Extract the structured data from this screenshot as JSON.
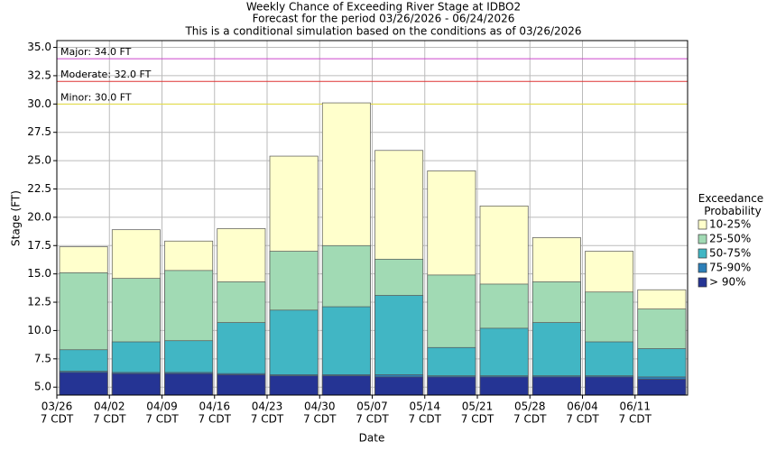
{
  "chart_data": {
    "type": "bar",
    "title": "Weekly Chance of Exceeding River Stage at IDBO2",
    "subtitle": "Forecast for the period 03/26/2026 - 06/24/2026",
    "note": "This is a conditional simulation based on the conditions as of 03/26/2026",
    "x_label": "Date",
    "y_label": "Stage (FT)",
    "categories": [
      "03/26",
      "04/02",
      "04/09",
      "04/16",
      "04/23",
      "04/30",
      "05/07",
      "05/14",
      "05/21",
      "05/28",
      "06/04",
      "06/11"
    ],
    "category_time": "7 CDT",
    "legend_title": "Exceedance Probability",
    "legend_position": "right",
    "grid": true,
    "ylim": [
      4.3,
      35.6
    ],
    "yticks": [
      {
        "value": 5,
        "label": "5.0"
      },
      {
        "value": 7.5,
        "label": "7.5"
      },
      {
        "value": 10,
        "label": "10.0"
      },
      {
        "value": 12.5,
        "label": "12.5"
      },
      {
        "value": 15,
        "label": "15.0"
      },
      {
        "value": 17.5,
        "label": "17.5"
      },
      {
        "value": 20,
        "label": "20.0"
      },
      {
        "value": 22.5,
        "label": "22.5"
      },
      {
        "value": 25,
        "label": "25.0"
      },
      {
        "value": 27.5,
        "label": "27.5"
      },
      {
        "value": 30,
        "label": "30.0"
      },
      {
        "value": 32.5,
        "label": "32.5"
      },
      {
        "value": 35,
        "label": "35.0"
      }
    ],
    "series": [
      {
        "name": "10-25%",
        "color": "#ffffcc",
        "values": [
          17.4,
          18.9,
          17.9,
          19.0,
          25.4,
          30.1,
          25.9,
          24.1,
          21.0,
          18.2,
          17.0,
          13.6
        ]
      },
      {
        "name": "25-50%",
        "color": "#a1dab4",
        "values": [
          15.1,
          14.6,
          15.3,
          14.3,
          17.0,
          17.5,
          16.3,
          14.9,
          14.1,
          14.3,
          13.4,
          11.9
        ]
      },
      {
        "name": "50-75%",
        "color": "#41b6c4",
        "values": [
          8.3,
          9.0,
          9.1,
          10.7,
          11.8,
          12.1,
          13.1,
          8.5,
          10.2,
          10.7,
          9.0,
          8.4
        ]
      },
      {
        "name": "75-90%",
        "color": "#2c7fb8",
        "values": [
          6.4,
          6.3,
          6.3,
          6.2,
          6.1,
          6.1,
          6.1,
          6.0,
          6.0,
          6.0,
          6.0,
          5.9
        ]
      },
      {
        "name": "> 90%",
        "color": "#253494",
        "values": [
          6.3,
          6.2,
          6.2,
          6.1,
          6.0,
          6.0,
          5.9,
          5.9,
          5.9,
          5.9,
          5.9,
          5.7
        ]
      }
    ],
    "thresholds": [
      {
        "label": "Major: 34.0 FT",
        "value": 34,
        "color": "#cc44cc"
      },
      {
        "label": "Moderate: 32.0 FT",
        "value": 32,
        "color": "#dd3333"
      },
      {
        "label": "Minor: 30.0 FT",
        "value": 30,
        "color": "#e8e040"
      }
    ]
  }
}
